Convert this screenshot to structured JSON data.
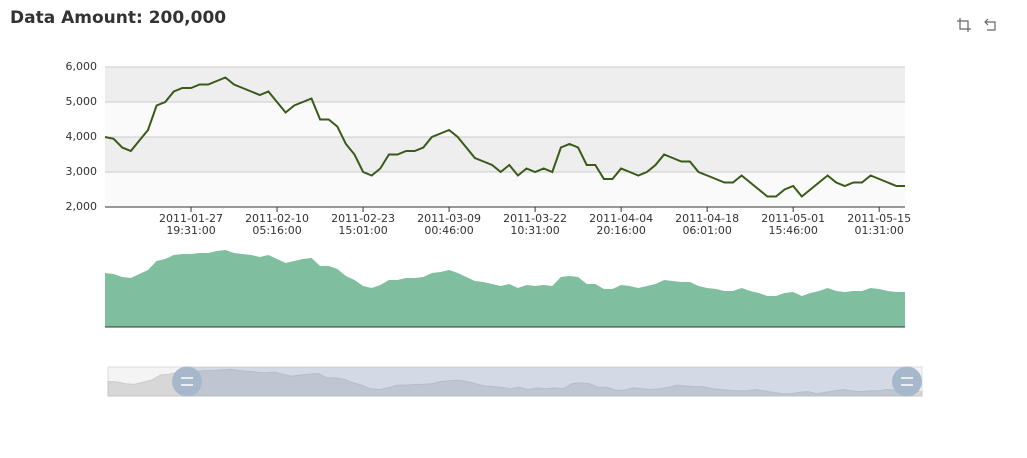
{
  "chart_data": [
    {
      "type": "line",
      "title": "Data Amount: 200,000",
      "color": "#3a5a1a",
      "split_area": true,
      "categories": [
        null,
        null,
        null,
        null,
        null,
        null,
        null,
        null,
        null,
        null,
        "2011-01-27\n19:31:00",
        null,
        null,
        null,
        null,
        null,
        null,
        null,
        null,
        null,
        "2011-02-10\n05:16:00",
        null,
        null,
        null,
        null,
        null,
        null,
        null,
        null,
        null,
        "2011-02-23\n15:01:00",
        null,
        null,
        null,
        null,
        null,
        null,
        null,
        null,
        null,
        "2011-03-09\n00:46:00",
        null,
        null,
        null,
        null,
        null,
        null,
        null,
        null,
        null,
        "2011-03-22\n10:31:00",
        null,
        null,
        null,
        null,
        null,
        null,
        null,
        null,
        null,
        "2011-04-04\n20:16:00",
        null,
        null,
        null,
        null,
        null,
        null,
        null,
        null,
        null,
        "2011-04-18\n06:01:00",
        null,
        null,
        null,
        null,
        null,
        null,
        null,
        null,
        null,
        "2011-05-01\n15:46:00",
        null,
        null,
        null,
        null,
        null,
        null,
        null,
        null,
        null,
        "2011-05-15\n01:31:00",
        null,
        null,
        null
      ],
      "values": [
        4000,
        3950,
        3700,
        3600,
        3900,
        4200,
        4900,
        5000,
        5300,
        5400,
        5400,
        5500,
        5500,
        5600,
        5700,
        5500,
        5400,
        5300,
        5200,
        5300,
        5000,
        4700,
        4900,
        5000,
        5100,
        4500,
        4500,
        4300,
        3800,
        3500,
        3000,
        2900,
        3100,
        3500,
        3500,
        3600,
        3600,
        3700,
        4000,
        4100,
        4200,
        4000,
        3700,
        3400,
        3300,
        3200,
        3000,
        3200,
        2900,
        3100,
        3000,
        3100,
        3000,
        3700,
        3800,
        3700,
        3200,
        3200,
        2800,
        2800,
        3100,
        3000,
        2900,
        3000,
        3200,
        3500,
        3400,
        3300,
        3300,
        3000,
        2900,
        2800,
        2700,
        2700,
        2900,
        2700,
        2500,
        2300,
        2300,
        2500,
        2600,
        2300,
        2500,
        2700,
        2900,
        2700,
        2600,
        2700,
        2700,
        2900,
        2800,
        2700,
        2600,
        2600
      ],
      "ylim": [
        2000,
        6000
      ],
      "yticks": [
        {
          "value": 2000,
          "label": "2,000"
        },
        {
          "value": 3000,
          "label": "3,000"
        },
        {
          "value": 4000,
          "label": "4,000"
        },
        {
          "value": 5000,
          "label": "5,000"
        },
        {
          "value": 6000,
          "label": "6,000"
        }
      ]
    },
    {
      "type": "area",
      "color": "#7fbe9e",
      "ylim": [
        0,
        80
      ],
      "values": [
        54,
        53,
        50,
        49,
        53,
        57,
        66,
        68,
        72,
        73,
        73,
        74,
        74,
        76,
        77,
        74,
        73,
        72,
        70,
        72,
        68,
        64,
        66,
        68,
        69,
        61,
        61,
        58,
        51,
        47,
        41,
        39,
        42,
        47,
        47,
        49,
        49,
        50,
        54,
        55,
        57,
        54,
        50,
        46,
        45,
        43,
        41,
        43,
        39,
        42,
        41,
        42,
        41,
        50,
        51,
        50,
        43,
        43,
        38,
        38,
        42,
        41,
        39,
        41,
        43,
        47,
        46,
        45,
        45,
        41,
        39,
        38,
        36,
        36,
        39,
        36,
        34,
        31,
        31,
        34,
        35,
        31,
        34,
        36,
        39,
        36,
        35,
        36,
        36,
        39,
        38,
        36,
        35,
        35
      ]
    }
  ]
}
